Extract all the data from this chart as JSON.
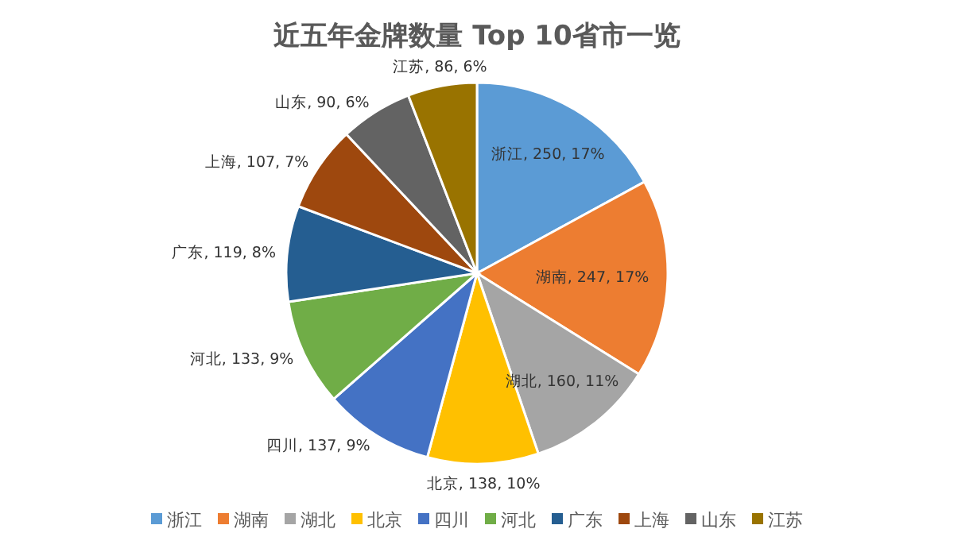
{
  "chart_data": {
    "type": "pie",
    "title": "近五年金牌数量 Top 10省市一览",
    "categories": [
      "浙江",
      "湖南",
      "湖北",
      "北京",
      "四川",
      "河北",
      "广东",
      "上海",
      "山东",
      "江苏"
    ],
    "values": [
      250,
      247,
      160,
      138,
      137,
      133,
      119,
      107,
      90,
      86
    ],
    "value_labels": [
      "浙江, 250, 17%",
      "湖南, 247, 17%",
      "湖北, 160, 11%",
      "北京, 138, 10%",
      "四川, 137, 9%",
      "河北, 133, 9%",
      "广东, 119, 8%",
      "上海, 107, 7%",
      "山东, 90, 6%",
      "江苏, 86, 6%"
    ],
    "colors": [
      "#5b9bd5",
      "#ed7d31",
      "#a5a5a5",
      "#ffc000",
      "#4472c4",
      "#70ad47",
      "#255e91",
      "#9e480e",
      "#636363",
      "#997300"
    ],
    "legend": "bottom"
  }
}
